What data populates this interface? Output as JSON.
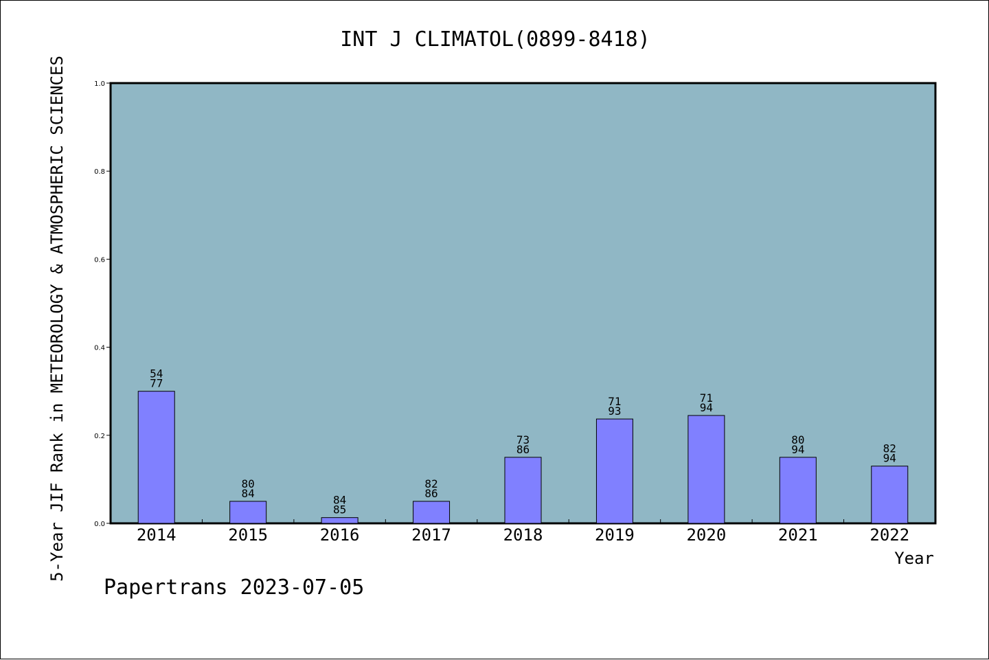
{
  "chart_data": {
    "type": "bar",
    "title": "INT J CLIMATOL(0899-8418)",
    "xlabel": "Year",
    "ylabel": "5-Year JIF Rank in METEOROLOGY & ATMOSPHERIC SCIENCES",
    "ylim": [
      0,
      1.0
    ],
    "yticks": [
      "0.0",
      "0.2",
      "0.4",
      "0.6",
      "0.8",
      "1.0"
    ],
    "categories": [
      "2014",
      "2015",
      "2016",
      "2017",
      "2018",
      "2019",
      "2020",
      "2021",
      "2022"
    ],
    "values": [
      0.3,
      0.05,
      0.013,
      0.05,
      0.15,
      0.237,
      0.245,
      0.15,
      0.13
    ],
    "labels_top": [
      "54",
      "80",
      "84",
      "82",
      "73",
      "71",
      "71",
      "80",
      "82"
    ],
    "labels_bottom": [
      "77",
      "84",
      "85",
      "86",
      "86",
      "93",
      "94",
      "94",
      "94"
    ],
    "grid": false,
    "colors": {
      "plot_background": "#90b7c5",
      "bar_fill": "#8080ff",
      "bar_stroke": "#000000"
    }
  },
  "footer": "Papertrans 2023-07-05"
}
